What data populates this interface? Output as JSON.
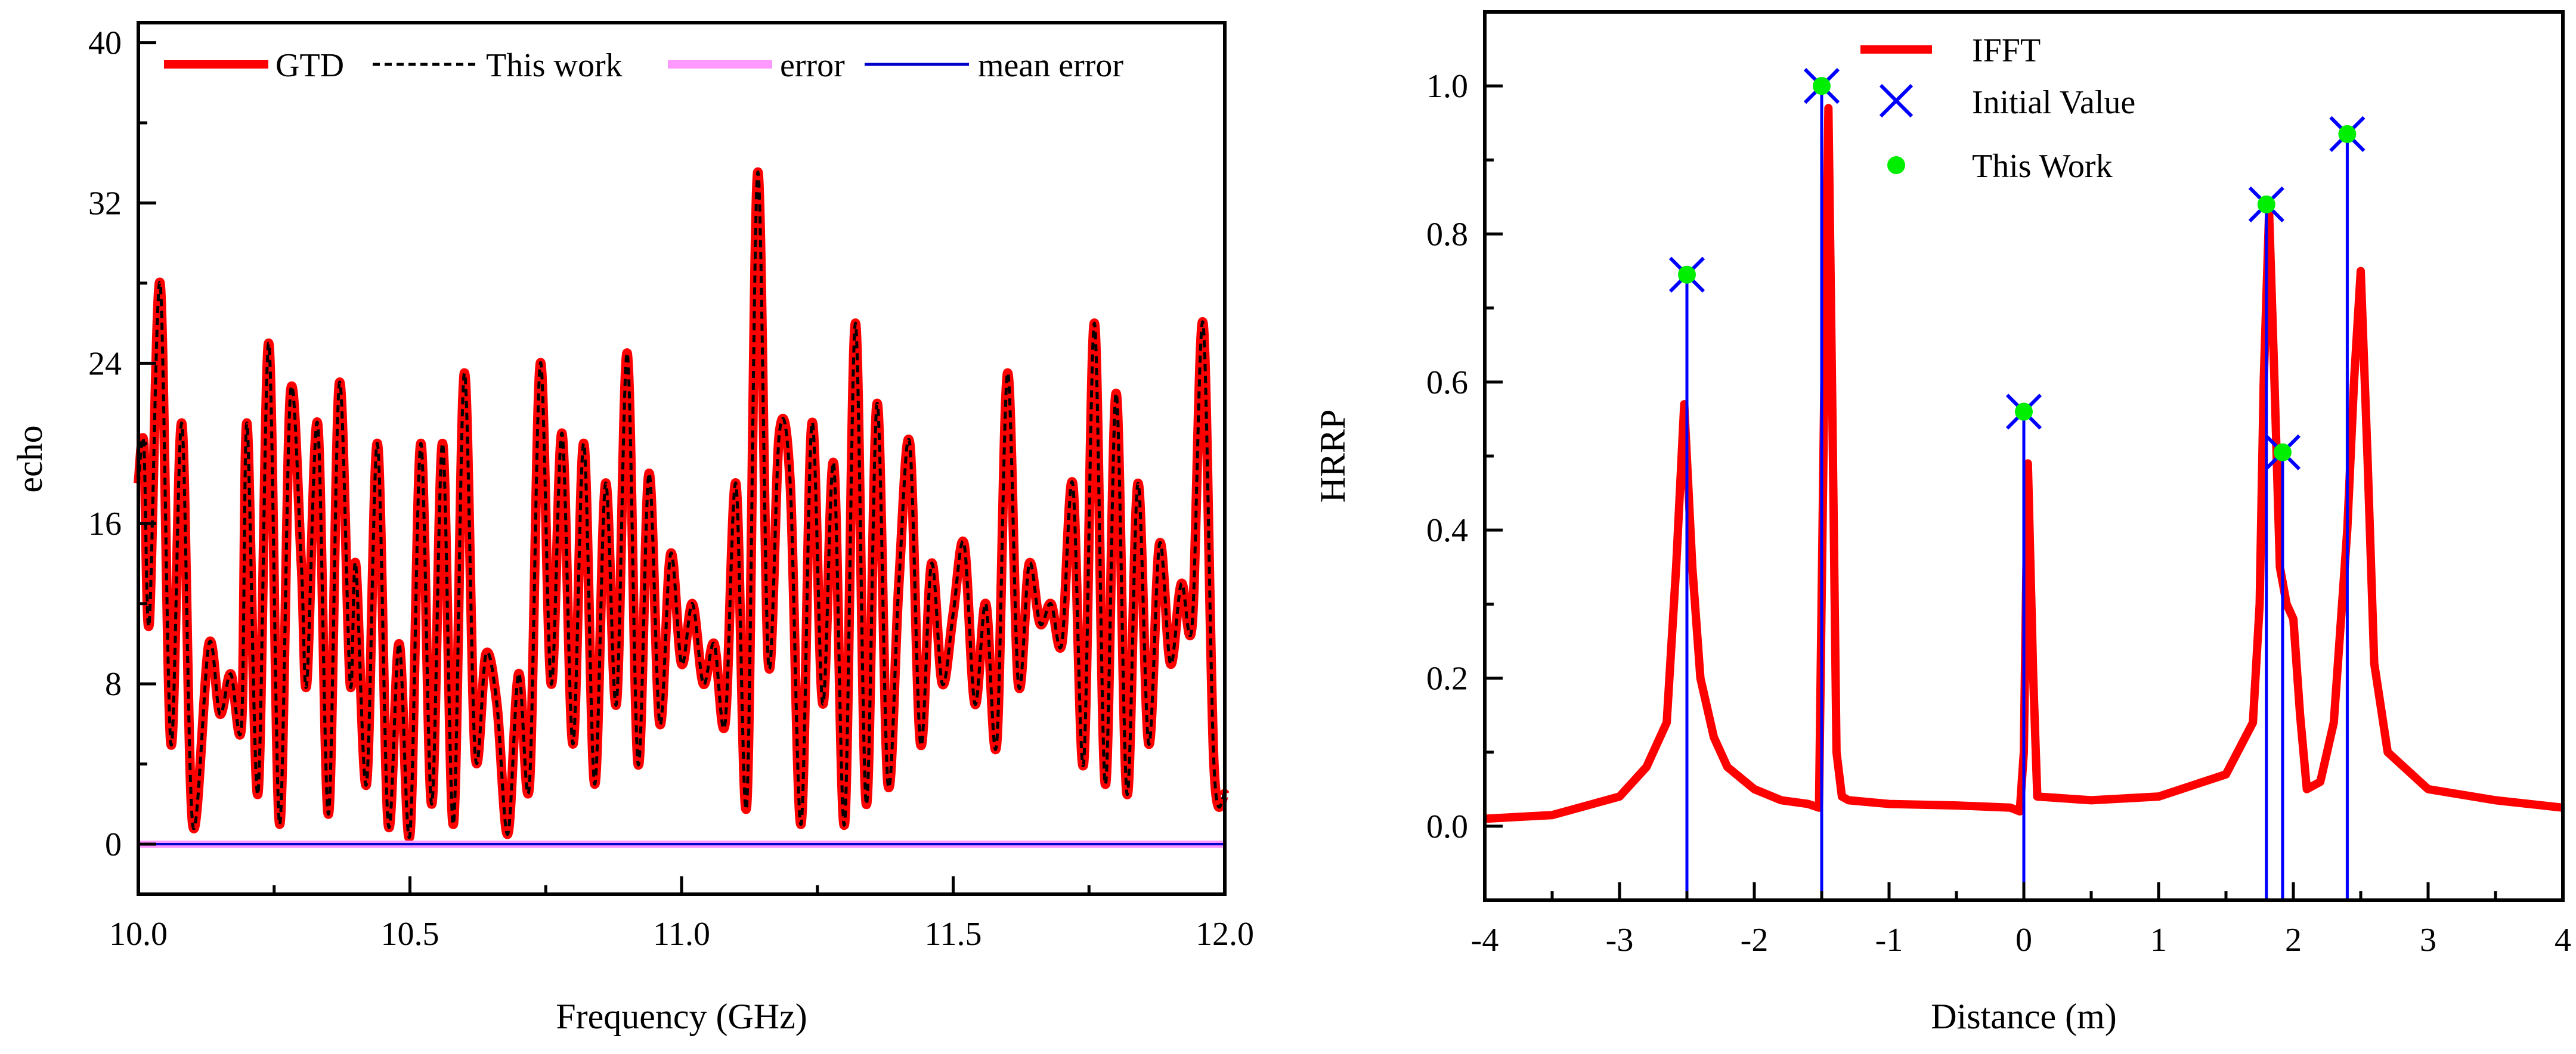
{
  "chart_data": [
    {
      "type": "line",
      "xlabel": "Frequency (GHz)",
      "ylabel": "echo",
      "xlim": [
        10.0,
        12.0
      ],
      "ylim": [
        -2.5,
        41
      ],
      "xticks": [
        10.0,
        10.5,
        11.0,
        11.5,
        12.0
      ],
      "xtick_labels": [
        "10.0",
        "10.5",
        "11.0",
        "11.5",
        "12.0"
      ],
      "yticks": [
        0,
        8,
        16,
        24,
        32,
        40
      ],
      "ytick_labels": [
        "0",
        "8",
        "16",
        "24",
        "32",
        "40"
      ],
      "legend_position": "top",
      "series": [
        {
          "name": "GTD",
          "color": "#ff0000",
          "style": "solid-thick",
          "x": [
            10.0,
            10.01,
            10.02,
            10.04,
            10.06,
            10.08,
            10.1,
            10.13,
            10.15,
            10.17,
            10.19,
            10.2,
            10.22,
            10.24,
            10.26,
            10.28,
            10.3,
            10.31,
            10.33,
            10.35,
            10.37,
            10.39,
            10.4,
            10.42,
            10.44,
            10.46,
            10.48,
            10.5,
            10.52,
            10.54,
            10.56,
            10.58,
            10.6,
            10.62,
            10.64,
            10.66,
            10.68,
            10.7,
            10.72,
            10.74,
            10.76,
            10.78,
            10.8,
            10.82,
            10.84,
            10.86,
            10.88,
            10.9,
            10.92,
            10.94,
            10.96,
            10.98,
            11.0,
            11.02,
            11.04,
            11.06,
            11.08,
            11.1,
            11.12,
            11.14,
            11.16,
            11.18,
            11.2,
            11.22,
            11.24,
            11.26,
            11.28,
            11.3,
            11.32,
            11.34,
            11.36,
            11.38,
            11.4,
            11.42,
            11.44,
            11.46,
            11.48,
            11.5,
            11.52,
            11.54,
            11.56,
            11.58,
            11.6,
            11.62,
            11.64,
            11.66,
            11.68,
            11.7,
            11.72,
            11.74,
            11.76,
            11.78,
            11.8,
            11.82,
            11.84,
            11.86,
            11.88,
            11.9,
            11.92,
            11.94,
            11.96,
            11.98,
            12.0
          ],
          "y": [
            18,
            20,
            11,
            28,
            5,
            21,
            1,
            10,
            6.5,
            8.5,
            6,
            21,
            2.5,
            25,
            1,
            22.5,
            14,
            8,
            21,
            1.5,
            23,
            8,
            14,
            3,
            20,
            1,
            10,
            0.5,
            20,
            2,
            20,
            1,
            23.5,
            4.5,
            9.5,
            7,
            0.5,
            8.5,
            3,
            24,
            8,
            20.5,
            5,
            20,
            3,
            18,
            7,
            24.5,
            4,
            18.5,
            6,
            14.5,
            9,
            12,
            8,
            10,
            6,
            18,
            2,
            33.5,
            9,
            20.5,
            18,
            1,
            21,
            7,
            19,
            1,
            26,
            2,
            22,
            3,
            13,
            20,
            5,
            14,
            8,
            11.5,
            15,
            7,
            12,
            5,
            23.5,
            8,
            14,
            11,
            12,
            10,
            18,
            4,
            26,
            3,
            22.5,
            2.5,
            18,
            5,
            15,
            9,
            13,
            11,
            26,
            4,
            2.5
          ]
        },
        {
          "name": "This work",
          "color": "#000000",
          "style": "dashed"
        },
        {
          "name": "error",
          "color": "#ff99ff",
          "style": "solid-thick",
          "constant": 0
        },
        {
          "name": "mean error",
          "color": "#0000cc",
          "style": "solid-thin",
          "constant": 0
        }
      ]
    },
    {
      "type": "line",
      "xlabel": "Distance (m)",
      "ylabel": "HRRP",
      "xlim": [
        -4,
        4
      ],
      "ylim": [
        -0.1,
        1.1
      ],
      "xticks": [
        -4,
        -3,
        -2,
        -1,
        0,
        1,
        2,
        3,
        4
      ],
      "xtick_labels": [
        "-4",
        "-3",
        "-2",
        "-1",
        "0",
        "1",
        "2",
        "3",
        "4"
      ],
      "yticks": [
        0.0,
        0.2,
        0.4,
        0.6,
        0.8,
        1.0
      ],
      "ytick_labels": [
        "0.0",
        "0.2",
        "0.4",
        "0.6",
        "0.8",
        "1.0"
      ],
      "legend_position": "top-center",
      "series": [
        {
          "name": "IFFT",
          "color": "#ff0000",
          "style": "solid-thick",
          "x": [
            -4.0,
            -3.5,
            -3.0,
            -2.8,
            -2.65,
            -2.58,
            -2.52,
            -2.46,
            -2.4,
            -2.3,
            -2.2,
            -2.0,
            -1.8,
            -1.6,
            -1.52,
            -1.48,
            -1.45,
            -1.42,
            -1.39,
            -1.35,
            -1.3,
            -1.0,
            -0.5,
            -0.1,
            -0.03,
            0.0,
            0.03,
            0.07,
            0.1,
            0.5,
            1.0,
            1.5,
            1.7,
            1.75,
            1.78,
            1.82,
            1.86,
            1.9,
            1.95,
            2.0,
            2.05,
            2.1,
            2.2,
            2.3,
            2.4,
            2.45,
            2.5,
            2.55,
            2.6,
            2.7,
            3.0,
            3.5,
            4.0
          ],
          "y": [
            0.01,
            0.015,
            0.04,
            0.08,
            0.14,
            0.35,
            0.57,
            0.35,
            0.2,
            0.12,
            0.08,
            0.05,
            0.035,
            0.03,
            0.025,
            0.6,
            0.97,
            0.55,
            0.1,
            0.04,
            0.035,
            0.03,
            0.028,
            0.025,
            0.02,
            0.1,
            0.49,
            0.2,
            0.04,
            0.035,
            0.04,
            0.07,
            0.14,
            0.3,
            0.6,
            0.83,
            0.6,
            0.35,
            0.3,
            0.28,
            0.15,
            0.05,
            0.06,
            0.14,
            0.4,
            0.6,
            0.75,
            0.5,
            0.22,
            0.1,
            0.05,
            0.035,
            0.025
          ]
        },
        {
          "name": "Initial Value",
          "color": "#0000ff",
          "marker": "x",
          "x": [
            -2.5,
            -1.5,
            0.0,
            1.8,
            1.92,
            2.4
          ],
          "y": [
            0.745,
            1.0,
            0.56,
            0.84,
            0.505,
            0.935
          ]
        },
        {
          "name": "This Work",
          "color": "#00ee00",
          "marker": "dot",
          "x": [
            -2.5,
            -1.5,
            0.0,
            1.8,
            1.92,
            2.4
          ],
          "y": [
            0.745,
            1.0,
            0.56,
            0.84,
            0.505,
            0.935
          ]
        }
      ]
    }
  ]
}
